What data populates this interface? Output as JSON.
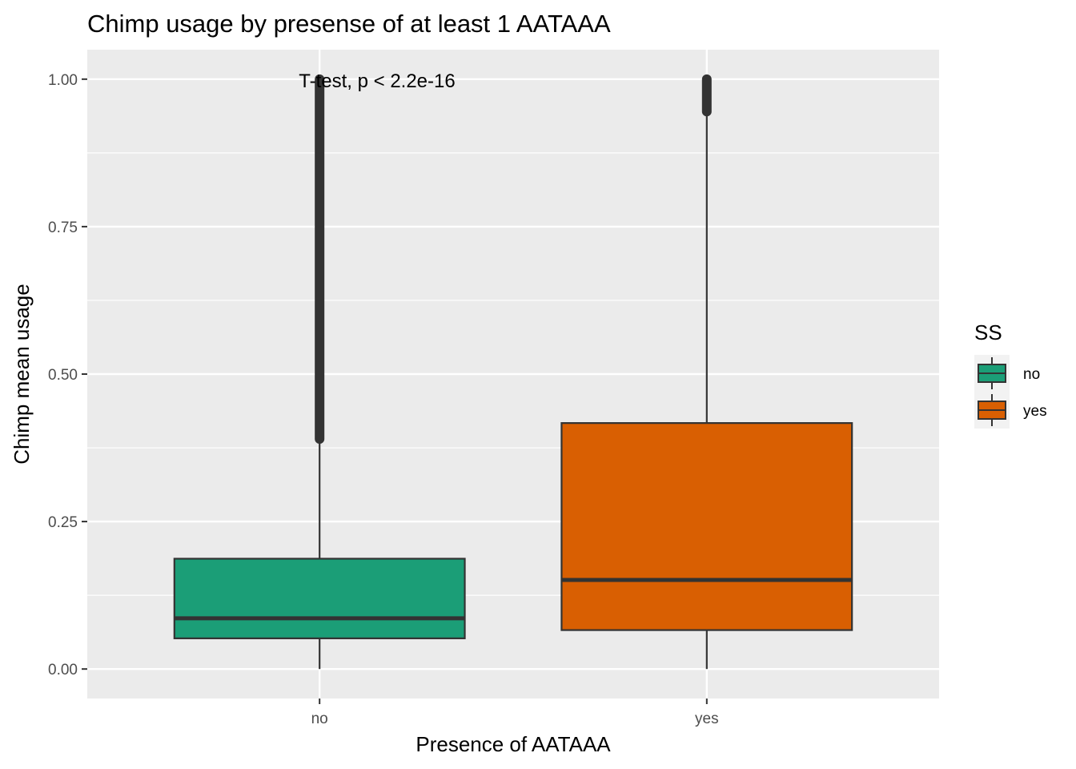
{
  "chart_data": {
    "type": "boxplot",
    "title": "Chimp usage by presense of at least 1 AATAAA",
    "xlabel": "Presence of AATAAA",
    "ylabel": "Chimp mean usage",
    "categories": [
      "no",
      "yes"
    ],
    "y_ticks": [
      "0.00",
      "0.25",
      "0.50",
      "0.75",
      "1.00"
    ],
    "y_tick_values": [
      0,
      0.25,
      0.5,
      0.75,
      1.0
    ],
    "ylim": [
      -0.05,
      1.05
    ],
    "annotation": "T-test, p < 2.2e-16",
    "legend": {
      "title": "SS",
      "entries": [
        "no",
        "yes"
      ],
      "placement": "right"
    },
    "grid": true,
    "boxes": [
      {
        "category": "no",
        "lower_whisker": 0.0,
        "q1": 0.052,
        "median": 0.086,
        "q3": 0.187,
        "upper_whisker": 0.39,
        "outliers_from": 0.39,
        "outliers_to": 1.0,
        "color": "#1b9e77"
      },
      {
        "category": "yes",
        "lower_whisker": 0.0,
        "q1": 0.066,
        "median": 0.151,
        "q3": 0.417,
        "upper_whisker": 0.945,
        "outliers_from": 0.945,
        "outliers_to": 1.0,
        "color": "#d95f02"
      }
    ],
    "panel_background": "#ebebeb",
    "outline_color": "#333333"
  }
}
